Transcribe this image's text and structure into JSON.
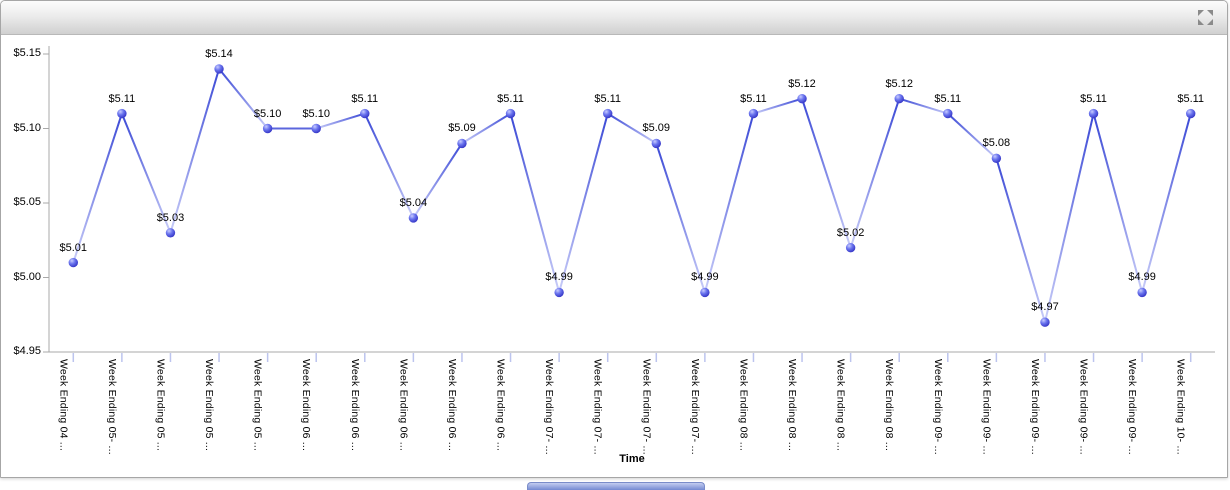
{
  "titlebar": {
    "expand_icon": "expand-arrows-icon"
  },
  "chart_data": {
    "type": "line",
    "xlabel": "Time",
    "ylim": [
      4.95,
      5.15
    ],
    "grid": false,
    "legend": false,
    "y_ticks": [
      "$5.15",
      "$5.10",
      "$5.05",
      "$5.00",
      "$4.95"
    ],
    "categories": [
      "Week Ending 04 ...",
      "Week Ending 05- ...",
      "Week Ending 05 ...",
      "Week Ending 05 ...",
      "Week Ending 05 ...",
      "Week Ending 06 ...",
      "Week Ending 06 ...",
      "Week Ending 06 ...",
      "Week Ending 06 ...",
      "Week Ending 06 ...",
      "Week Ending 07- ...",
      "Week Ending 07- ...",
      "Week Ending 07- ...",
      "Week Ending 07- ...",
      "Week Ending 08 ...",
      "Week Ending 08 ...",
      "Week Ending 08 ...",
      "Week Ending 08 ...",
      "Week Ending 09- ...",
      "Week Ending 09- ...",
      "Week Ending 09- ...",
      "Week Ending 09- ...",
      "Week Ending 09- ...",
      "Week Ending 10- ..."
    ],
    "values": [
      5.01,
      5.11,
      5.03,
      5.14,
      5.1,
      5.1,
      5.11,
      5.04,
      5.09,
      5.11,
      4.99,
      5.11,
      5.09,
      4.99,
      5.11,
      5.12,
      5.02,
      5.12,
      5.11,
      5.08,
      4.97,
      5.11,
      4.99,
      5.11
    ],
    "point_labels": [
      "$5.01",
      "$5.11",
      "$5.03",
      "$5.14",
      "$5.10",
      "$5.10",
      "$5.11",
      "$5.04",
      "$5.09",
      "$5.11",
      "$4.99",
      "$5.11",
      "$5.09",
      "$4.99",
      "$5.11",
      "$5.12",
      "$5.02",
      "$5.12",
      "$5.11",
      "$5.08",
      "$4.97",
      "$5.11",
      "$4.99",
      "$5.11"
    ],
    "colors": {
      "line_top": "#3b49d6",
      "line_bottom": "#c9cdf8",
      "line_flat": "#5b66dd",
      "marker": "#4444dd",
      "marker_highlight": "#c8ccff",
      "marker_mid": "#6a74ee",
      "marker_edge": "#3232c4",
      "axis": "#a8a8a8",
      "x_tick": "#bcc4ee",
      "label": "#000000",
      "titlebar_icon": "#8a8a8a"
    }
  }
}
